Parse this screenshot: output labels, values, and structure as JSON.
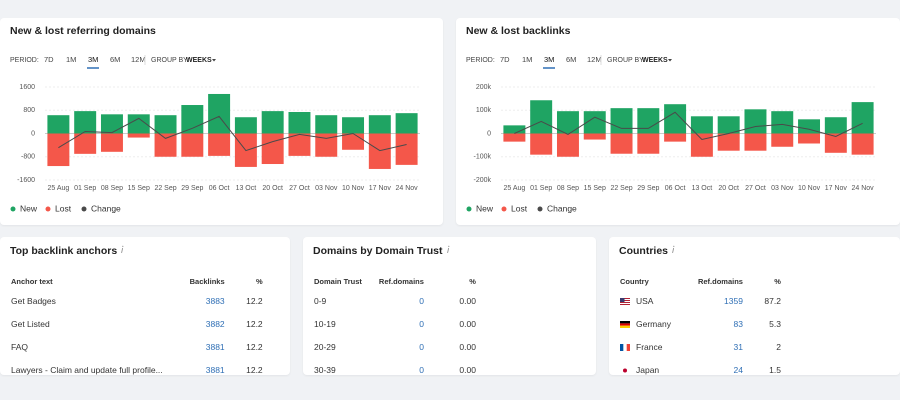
{
  "chart_data": [
    {
      "type": "bar",
      "title": "New & lost referring domains",
      "period_label": "PERIOD:",
      "period_options": [
        {
          "label": "7D",
          "active": false
        },
        {
          "label": "1M",
          "active": false
        },
        {
          "label": "3M",
          "active": true
        },
        {
          "label": "6M",
          "active": false
        },
        {
          "label": "12M",
          "active": false
        }
      ],
      "group_label": "GROUP BY:",
      "group_value": "WEEKS",
      "categories": [
        "25 Aug",
        "01 Sep",
        "08 Sep",
        "15 Sep",
        "22 Sep",
        "29 Sep",
        "06 Oct",
        "13 Oct",
        "20 Oct",
        "27 Oct",
        "03 Nov",
        "10 Nov",
        "17 Nov",
        "24 Nov"
      ],
      "series": [
        {
          "name": "New",
          "type": "bar",
          "color": "#1fa463",
          "values": [
            630,
            770,
            660,
            660,
            630,
            980,
            1360,
            560,
            770,
            740,
            630,
            560,
            630,
            700
          ]
        },
        {
          "name": "Lost",
          "type": "bar",
          "color": "#f4574a",
          "values": [
            -1120,
            -700,
            -630,
            -140,
            -800,
            -800,
            -770,
            -1150,
            -1050,
            -770,
            -800,
            -560,
            -1220,
            -1080
          ]
        },
        {
          "name": "Change",
          "type": "line",
          "color": "#4a4a4a",
          "values": [
            -490,
            70,
            30,
            520,
            -170,
            180,
            590,
            -590,
            -280,
            -30,
            -170,
            0,
            -590,
            -380
          ]
        }
      ],
      "ylim": [
        -1600,
        1600
      ],
      "yticks": [
        1600,
        800,
        0,
        -800,
        -1600
      ],
      "grid": true
    },
    {
      "type": "bar",
      "title": "New & lost backlinks",
      "period_label": "PERIOD:",
      "period_options": [
        {
          "label": "7D",
          "active": false
        },
        {
          "label": "1M",
          "active": false
        },
        {
          "label": "3M",
          "active": true
        },
        {
          "label": "6M",
          "active": false
        },
        {
          "label": "12M",
          "active": false
        }
      ],
      "group_label": "GROUP BY:",
      "group_value": "WEEKS",
      "categories": [
        "25 Aug",
        "01 Sep",
        "08 Sep",
        "15 Sep",
        "22 Sep",
        "29 Sep",
        "06 Oct",
        "13 Oct",
        "20 Oct",
        "27 Oct",
        "03 Nov",
        "10 Nov",
        "17 Nov",
        "24 Nov"
      ],
      "series": [
        {
          "name": "New",
          "type": "bar",
          "color": "#1fa463",
          "values": [
            35000,
            143000,
            96000,
            96000,
            109000,
            109000,
            126000,
            74000,
            74000,
            104000,
            96000,
            61000,
            70000,
            135000
          ]
        },
        {
          "name": "Lost",
          "type": "bar",
          "color": "#f4574a",
          "values": [
            -35000,
            -91000,
            -100000,
            -26000,
            -87000,
            -87000,
            -35000,
            -100000,
            -74000,
            -74000,
            -57000,
            -43000,
            -83000,
            -91000
          ]
        },
        {
          "name": "Change",
          "type": "line",
          "color": "#4a4a4a",
          "values": [
            0,
            52000,
            -4000,
            70000,
            22000,
            22000,
            91000,
            -26000,
            0,
            30000,
            39000,
            18000,
            -13000,
            44000
          ]
        }
      ],
      "ylim": [
        -200000,
        200000
      ],
      "yticks": [
        {
          "value": 200000,
          "label": "200k"
        },
        {
          "value": 100000,
          "label": "100k"
        },
        0,
        {
          "value": -100000,
          "label": "-100k"
        },
        {
          "value": -200000,
          "label": "-200k"
        }
      ],
      "grid": true
    }
  ],
  "tables": [
    {
      "title": "Top backlink anchors",
      "columns": [
        "Anchor text",
        "Backlinks",
        "%"
      ],
      "rows": [
        [
          "Get Badges",
          "3883",
          "12.2"
        ],
        [
          "Get Listed",
          "3882",
          "12.2"
        ],
        [
          "FAQ",
          "3881",
          "12.2"
        ],
        [
          "Lawyers - Claim and update full profile...",
          "3881",
          "12.2"
        ]
      ]
    },
    {
      "title": "Domains by Domain Trust",
      "columns": [
        "Domain Trust",
        "Ref.domains",
        "%"
      ],
      "rows": [
        [
          "0-9",
          "0",
          "0.00"
        ],
        [
          "10-19",
          "0",
          "0.00"
        ],
        [
          "20-29",
          "0",
          "0.00"
        ],
        [
          "30-39",
          "0",
          "0.00"
        ]
      ]
    },
    {
      "title": "Countries",
      "columns": [
        "Country",
        "Ref.domains",
        "%"
      ],
      "rows": [
        [
          "USA",
          "1359",
          "87.2"
        ],
        [
          "Germany",
          "83",
          "5.3"
        ],
        [
          "France",
          "31",
          "2"
        ],
        [
          "Japan",
          "24",
          "1.5"
        ]
      ]
    }
  ]
}
